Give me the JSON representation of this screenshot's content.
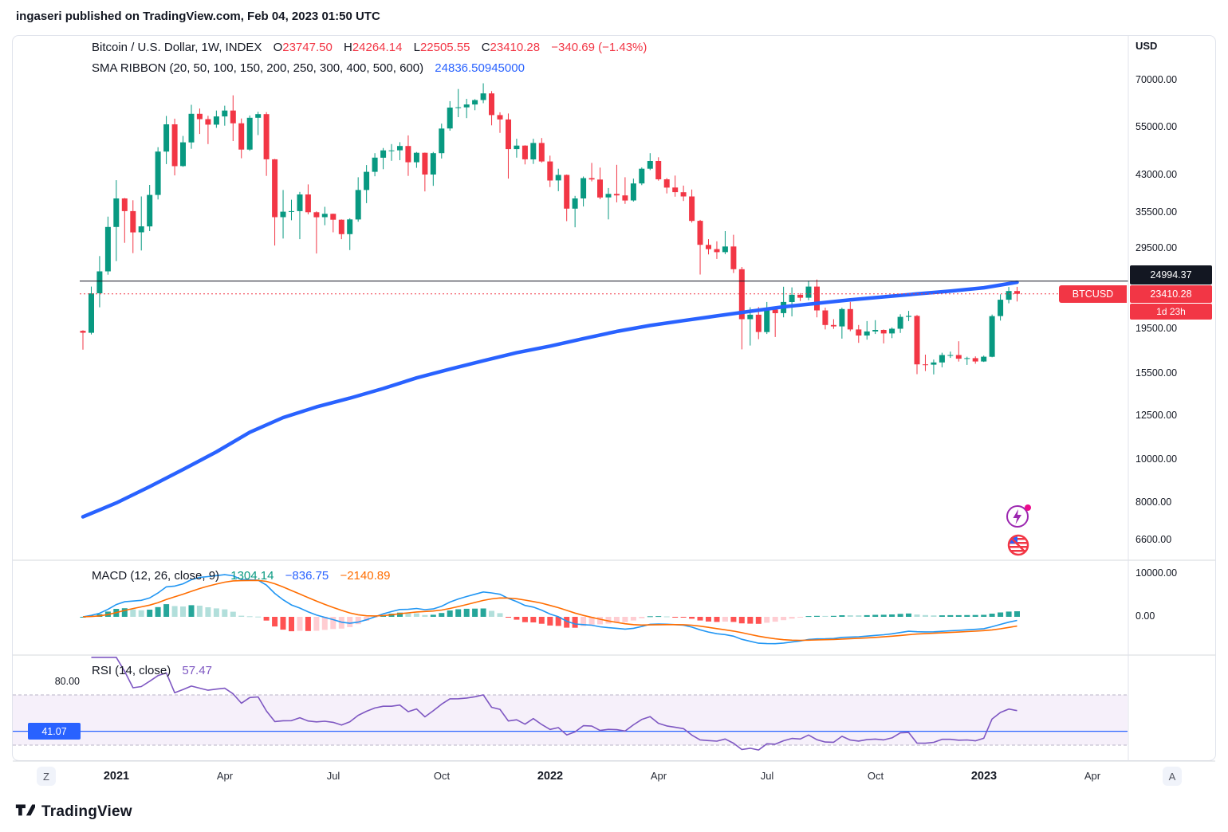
{
  "header": {
    "byline": "ingaseri published on TradingView.com, Feb 04, 2023 01:50 UTC"
  },
  "price_pane": {
    "title": "Bitcoin / U.S. Dollar, 1W, INDEX",
    "ohlc": {
      "o_label": "O",
      "o": "23747.50",
      "h_label": "H",
      "h": "24264.14",
      "l_label": "L",
      "l": "22505.55",
      "c_label": "C",
      "c": "23410.28",
      "change": "−340.69 (−1.43%)"
    },
    "sma_label": "SMA RIBBON (20, 50, 100, 150, 200, 250, 300, 400, 500, 600)",
    "sma_value": "24836.50945000",
    "prev_line": {
      "label": "24994.37",
      "value": 24994.37
    },
    "last_line": {
      "symbol": "BTCUSD",
      "label": "23410.28",
      "value": 23410.28,
      "countdown": "1d 23h"
    }
  },
  "price_axis": {
    "currency": "USD",
    "ticks": [
      {
        "text": "70000.00",
        "value": 70000
      },
      {
        "text": "55000.00",
        "value": 55000
      },
      {
        "text": "43000.00",
        "value": 43000
      },
      {
        "text": "35500.00",
        "value": 35500
      },
      {
        "text": "29500.00",
        "value": 29500
      },
      {
        "text": "19500.00",
        "value": 19500
      },
      {
        "text": "15500.00",
        "value": 15500
      },
      {
        "text": "12500.00",
        "value": 12500
      },
      {
        "text": "10000.00",
        "value": 10000
      },
      {
        "text": "8000.00",
        "value": 8000
      },
      {
        "text": "6600.00",
        "value": 6600
      }
    ]
  },
  "macd_pane": {
    "title": "MACD (12, 26, close, 9)",
    "hist_value": "1304.14",
    "macd_value": "−836.75",
    "signal_value": "−2140.89",
    "ticks": [
      {
        "text": "10000.00",
        "value": 10000
      },
      {
        "text": "0.00",
        "value": 0
      }
    ]
  },
  "rsi_pane": {
    "title": "RSI (14, close)",
    "value": "57.47",
    "left_tick": "80.00",
    "ma_badge": "41.07",
    "ma_value": 41.07,
    "upper_band": 70,
    "lower_band": 30
  },
  "time_axis": {
    "zoom_out_label": "Z",
    "zoom_in_label": "A",
    "labels": [
      {
        "text": "2021",
        "week": 4,
        "major": true
      },
      {
        "text": "Apr",
        "week": 17
      },
      {
        "text": "Jul",
        "week": 30
      },
      {
        "text": "Oct",
        "week": 43
      },
      {
        "text": "2022",
        "week": 56,
        "major": true
      },
      {
        "text": "Apr",
        "week": 69
      },
      {
        "text": "Jul",
        "week": 82
      },
      {
        "text": "Oct",
        "week": 95
      },
      {
        "text": "2023",
        "week": 108,
        "major": true
      },
      {
        "text": "Apr",
        "week": 121
      }
    ]
  },
  "footer": {
    "brand": "TradingView"
  },
  "colors": {
    "up": "#089981",
    "down": "#F23645",
    "ribbon": "#2962FF",
    "macd": "#2196F3",
    "signal": "#FF6D00",
    "hist_up": "#26A69A",
    "hist_up_weak": "#B2DFDB",
    "hist_down": "#FF5252",
    "hist_down_weak": "#FFCDD2",
    "rsi": "#7E57C2",
    "band_fill": "rgba(136,64,190,0.08)",
    "band_edge": "#b8b3c7",
    "accent_blue": "#2962FF",
    "prev_line": "#131722"
  },
  "chart_data": {
    "type": "candlestick",
    "title": "Bitcoin / U.S. Dollar, 1W, INDEX",
    "y_scale": "log",
    "y_axis_ticks": [
      70000,
      55000,
      43000,
      35500,
      29500,
      19500,
      15500,
      12500,
      10000,
      8000,
      6600
    ],
    "last_close": 23410.28,
    "prev_reference_level": 24994.37,
    "candles": [
      [
        19360,
        19420,
        17572,
        19170
      ],
      [
        19170,
        24300,
        19000,
        23470
      ],
      [
        23470,
        28420,
        21850,
        26270
      ],
      [
        26270,
        34800,
        25830,
        33000
      ],
      [
        33000,
        41950,
        27700,
        38200
      ],
      [
        38200,
        38300,
        30420,
        35800
      ],
      [
        35800,
        37850,
        28850,
        32100
      ],
      [
        32100,
        38600,
        29250,
        33100
      ],
      [
        33100,
        40950,
        32300,
        38900
      ],
      [
        38900,
        49700,
        38000,
        48600
      ],
      [
        48600,
        58350,
        45570,
        55900
      ],
      [
        55900,
        57550,
        43000,
        45100
      ],
      [
        45100,
        52650,
        44950,
        50950
      ],
      [
        50950,
        61800,
        49300,
        59000
      ],
      [
        59000,
        60600,
        53200,
        57400
      ],
      [
        57400,
        58400,
        50500,
        55800
      ],
      [
        55800,
        60000,
        54900,
        58200
      ],
      [
        58200,
        61500,
        55500,
        60000
      ],
      [
        60000,
        64860,
        51300,
        56200
      ],
      [
        56200,
        57600,
        46950,
        49100
      ],
      [
        49100,
        58500,
        48800,
        57800
      ],
      [
        57800,
        59600,
        52900,
        58900
      ],
      [
        58900,
        59500,
        42900,
        46700
      ],
      [
        46700,
        46800,
        30000,
        34700
      ],
      [
        34700,
        39900,
        31100,
        35700
      ],
      [
        35700,
        37950,
        34150,
        35800
      ],
      [
        35800,
        39500,
        31000,
        39000
      ],
      [
        39000,
        41050,
        35200,
        35600
      ],
      [
        35600,
        35750,
        28800,
        34700
      ],
      [
        34700,
        36600,
        33300,
        35300
      ],
      [
        35300,
        35350,
        32100,
        34250
      ],
      [
        34250,
        34300,
        31000,
        31800
      ],
      [
        31800,
        34500,
        29300,
        34300
      ],
      [
        34300,
        42600,
        33900,
        39900
      ],
      [
        39900,
        45350,
        37300,
        43800
      ],
      [
        43800,
        48200,
        42800,
        47100
      ],
      [
        47100,
        49500,
        44400,
        48900
      ],
      [
        48900,
        50500,
        46350,
        48900
      ],
      [
        48900,
        51000,
        46500,
        50000
      ],
      [
        50000,
        52800,
        42900,
        46000
      ],
      [
        46000,
        48500,
        44700,
        48300
      ],
      [
        48300,
        48350,
        39600,
        43200
      ],
      [
        43200,
        48500,
        40750,
        48200
      ],
      [
        48200,
        56100,
        46900,
        54700
      ],
      [
        54700,
        62950,
        54100,
        60900
      ],
      [
        60900,
        67000,
        58000,
        61000
      ],
      [
        61000,
        63720,
        57700,
        61900
      ],
      [
        61900,
        63600,
        60100,
        63300
      ],
      [
        63300,
        69000,
        62300,
        65500
      ],
      [
        65500,
        66300,
        55600,
        58600
      ],
      [
        58600,
        59450,
        53500,
        57300
      ],
      [
        57300,
        59100,
        42300,
        49200
      ],
      [
        49200,
        51900,
        47100,
        50100
      ],
      [
        50100,
        50200,
        45500,
        46700
      ],
      [
        46700,
        51900,
        45600,
        50800
      ],
      [
        50800,
        52100,
        45900,
        46200
      ],
      [
        46200,
        47600,
        40500,
        41900
      ],
      [
        41900,
        44500,
        39650,
        43100
      ],
      [
        43100,
        43200,
        34000,
        36250
      ],
      [
        36250,
        38700,
        32950,
        38200
      ],
      [
        38200,
        42750,
        36650,
        42400
      ],
      [
        42400,
        45850,
        41700,
        42100
      ],
      [
        42100,
        44750,
        38050,
        38400
      ],
      [
        38400,
        40300,
        34300,
        39100
      ],
      [
        39100,
        45400,
        37450,
        38800
      ],
      [
        38800,
        42600,
        37150,
        37800
      ],
      [
        37800,
        42300,
        37600,
        41250
      ],
      [
        41250,
        44800,
        40900,
        44500
      ],
      [
        44500,
        48200,
        44200,
        46300
      ],
      [
        46300,
        47200,
        41850,
        42150
      ],
      [
        42150,
        42420,
        39200,
        40400
      ],
      [
        40400,
        42970,
        38550,
        39450
      ],
      [
        39450,
        40800,
        37700,
        38600
      ],
      [
        38600,
        40000,
        33750,
        34050
      ],
      [
        34050,
        34220,
        25850,
        30100
      ],
      [
        30100,
        31000,
        28650,
        29450
      ],
      [
        29450,
        30650,
        28000,
        29000
      ],
      [
        29000,
        32300,
        28700,
        29850
      ],
      [
        29850,
        31700,
        26050,
        26560
      ],
      [
        26560,
        26870,
        17600,
        20550
      ],
      [
        20550,
        21850,
        17950,
        21030
      ],
      [
        21030,
        21880,
        18550,
        19240
      ],
      [
        19240,
        22450,
        19050,
        21590
      ],
      [
        21590,
        21650,
        18750,
        21200
      ],
      [
        21200,
        24280,
        20750,
        22450
      ],
      [
        22450,
        24200,
        20850,
        23300
      ],
      [
        23300,
        23500,
        22550,
        22950
      ],
      [
        22950,
        25050,
        22650,
        24300
      ],
      [
        24300,
        25200,
        20750,
        21500
      ],
      [
        21500,
        21800,
        19500,
        19950
      ],
      [
        19950,
        20550,
        19550,
        19800
      ],
      [
        19800,
        21800,
        18600,
        21650
      ],
      [
        21650,
        22450,
        19320,
        19500
      ],
      [
        19500,
        19950,
        18200,
        18900
      ],
      [
        18900,
        20350,
        18500,
        19300
      ],
      [
        19300,
        20450,
        19050,
        19450
      ],
      [
        19450,
        19500,
        18150,
        19100
      ],
      [
        19100,
        19700,
        18650,
        19570
      ],
      [
        19570,
        21080,
        19150,
        20800
      ],
      [
        20800,
        21450,
        20350,
        20900
      ],
      [
        20900,
        21000,
        15500,
        16300
      ],
      [
        16300,
        17130,
        15750,
        16270
      ],
      [
        16270,
        16700,
        15480,
        16460
      ],
      [
        16460,
        17300,
        16050,
        17100
      ],
      [
        17100,
        17400,
        16850,
        17100
      ],
      [
        17100,
        18350,
        16530,
        16780
      ],
      [
        16780,
        16950,
        16250,
        16830
      ],
      [
        16830,
        16980,
        16350,
        16540
      ],
      [
        16540,
        17050,
        16500,
        16950
      ],
      [
        16950,
        21050,
        16900,
        20880
      ],
      [
        20880,
        23350,
        20400,
        22710
      ],
      [
        22710,
        24250,
        22300,
        23750
      ],
      [
        23750,
        24264,
        22505,
        23410
      ]
    ],
    "sma_ribbon": [
      [
        0,
        7450
      ],
      [
        4,
        8000
      ],
      [
        8,
        8700
      ],
      [
        12,
        9500
      ],
      [
        16,
        10400
      ],
      [
        20,
        11500
      ],
      [
        24,
        12400
      ],
      [
        28,
        13100
      ],
      [
        32,
        13700
      ],
      [
        36,
        14400
      ],
      [
        40,
        15200
      ],
      [
        44,
        15900
      ],
      [
        48,
        16600
      ],
      [
        52,
        17300
      ],
      [
        56,
        17900
      ],
      [
        60,
        18600
      ],
      [
        64,
        19300
      ],
      [
        68,
        19900
      ],
      [
        72,
        20400
      ],
      [
        76,
        20900
      ],
      [
        80,
        21400
      ],
      [
        84,
        21900
      ],
      [
        88,
        22300
      ],
      [
        92,
        22700
      ],
      [
        96,
        23050
      ],
      [
        100,
        23400
      ],
      [
        104,
        23750
      ],
      [
        108,
        24150
      ],
      [
        112,
        24836
      ]
    ],
    "macd_params": {
      "fast": 12,
      "slow": 26,
      "source": "close",
      "smoothing": 9,
      "last_hist": 1304.14,
      "last_macd": -836.75,
      "last_signal": -2140.89
    },
    "rsi_params": {
      "length": 14,
      "source": "close",
      "last_value": 57.47,
      "ma_level": 41.07,
      "upper_band": 70,
      "lower_band": 30
    }
  }
}
